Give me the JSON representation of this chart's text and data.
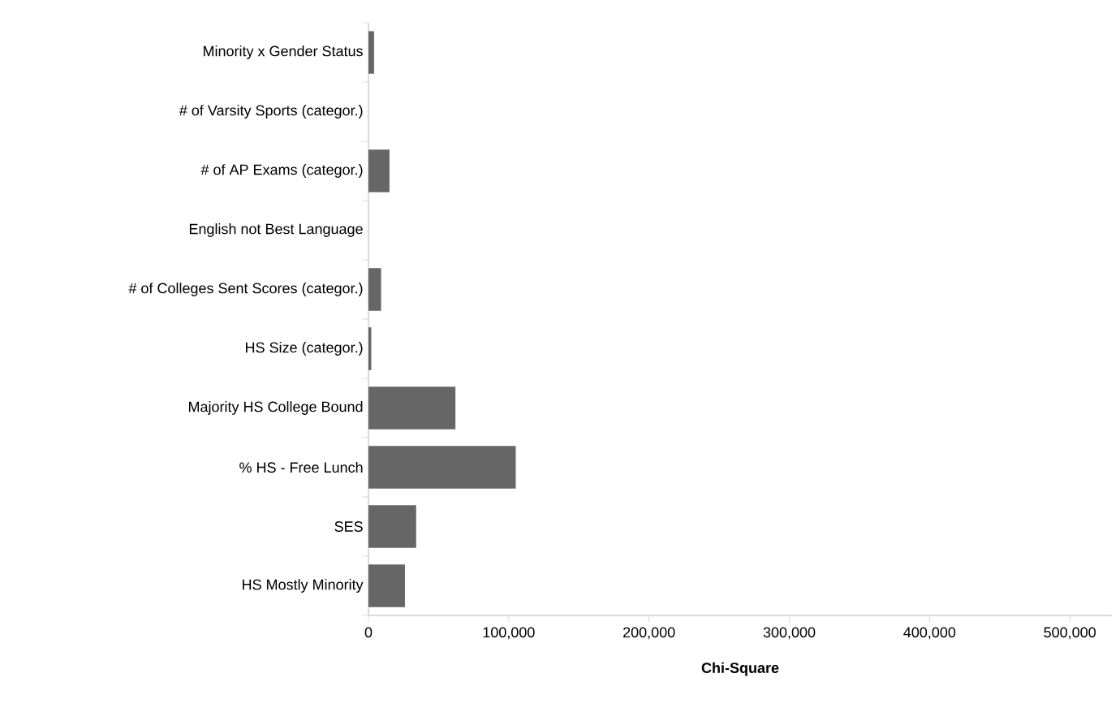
{
  "chart_data": {
    "type": "bar",
    "orientation": "horizontal",
    "xlabel": "Chi-Square",
    "categories": [
      "Minority x Gender Status",
      "# of Varsity Sports (categor.)",
      "# of AP Exams (categor.)",
      "English not Best Language",
      "# of Colleges Sent Scores (categor.)",
      "HS Size (categor.)",
      "Majority HS College Bound",
      "% HS - Free Lunch",
      "SES",
      "HS Mostly Minority"
    ],
    "values": [
      4000,
      0,
      15000,
      0,
      9000,
      2000,
      62000,
      105000,
      34000,
      26000
    ],
    "color": "#666666",
    "xlim": [
      0,
      530000
    ],
    "xticks": [
      {
        "value": 0,
        "label": "0"
      },
      {
        "value": 100000,
        "label": "100,000"
      },
      {
        "value": 200000,
        "label": "200,000"
      },
      {
        "value": 300000,
        "label": "300,000"
      },
      {
        "value": 400000,
        "label": "400,000"
      },
      {
        "value": 500000,
        "label": "500,000"
      }
    ],
    "grid": false
  }
}
